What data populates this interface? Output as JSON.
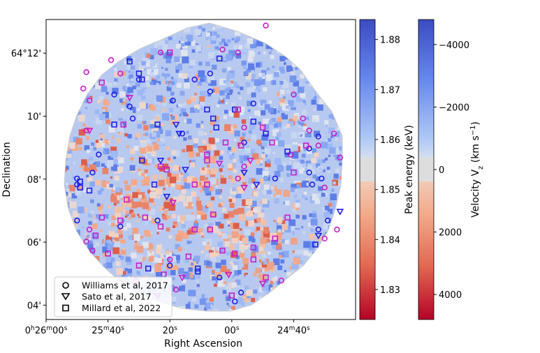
{
  "chart_data": {
    "type": "scatter",
    "title": "",
    "xlabel": "Right Ascension",
    "ylabel": "Declination",
    "x_ticks": [
      {
        "h": "0",
        "m": "26",
        "s": "00",
        "pos": 0.0
      },
      {
        "h": "",
        "m": "25",
        "s": "40",
        "pos": 0.2
      },
      {
        "h": "",
        "m": "",
        "s": "20",
        "pos": 0.4
      },
      {
        "h": "",
        "m": "",
        "s": "00",
        "pos": 0.6
      },
      {
        "h": "",
        "m": "24",
        "s": "40",
        "pos": 0.8
      }
    ],
    "y_ticks": [
      {
        "label": "64°12'",
        "pos": 0.112
      },
      {
        "label": "10'",
        "pos": 0.322
      },
      {
        "label": "08'",
        "pos": 0.532
      },
      {
        "label": "06'",
        "pos": 0.742
      },
      {
        "label": "04'",
        "pos": 0.952
      }
    ],
    "colorbars": [
      {
        "name": "peak-energy",
        "label": "Peak energy (keV)",
        "range": [
          1.824,
          1.884
        ],
        "ticks": [
          "1.88",
          "1.87",
          "1.86",
          "1.85",
          "1.84",
          "1.83"
        ],
        "tick_values": [
          1.88,
          1.87,
          1.86,
          1.85,
          1.84,
          1.83
        ]
      },
      {
        "name": "velocity",
        "label_main": "Velocity V",
        "label_sub": "z",
        "label_unit": " (km s",
        "label_sup": "−1",
        "label_end": ")",
        "range": [
          -4800,
          4800
        ],
        "ticks": [
          "−4000",
          "−2000",
          "0",
          "2000",
          "4000"
        ],
        "tick_values": [
          -4000,
          -2000,
          0,
          2000,
          4000
        ]
      }
    ],
    "legend": {
      "position": "lower-left",
      "entries": [
        {
          "label": "Williams et al, 2017",
          "marker": "circle"
        },
        {
          "label": "Sato et al, 2017",
          "marker": "triangle-down"
        },
        {
          "label": "Millard et al, 2022",
          "marker": "square"
        }
      ]
    },
    "marker_colors": {
      "blueshifted": "#1f1fe6",
      "redshifted": "#c81ec8"
    },
    "colormap": {
      "blue": "#3a4cc0",
      "white": "#dddddd",
      "red": "#b40426"
    },
    "series": [
      {
        "name": "Williams et al, 2017",
        "marker": "circle",
        "points": [
          {
            "x": 0.71,
            "y": 0.02,
            "c": "red"
          },
          {
            "x": 0.57,
            "y": 0.1,
            "c": "red"
          },
          {
            "x": 0.62,
            "y": 0.11,
            "c": "red"
          },
          {
            "x": 0.37,
            "y": 0.11,
            "c": "red"
          },
          {
            "x": 0.21,
            "y": 0.135,
            "c": "red"
          },
          {
            "x": 0.24,
            "y": 0.18,
            "c": "red"
          },
          {
            "x": 0.13,
            "y": 0.175,
            "c": "red"
          },
          {
            "x": 0.53,
            "y": 0.18,
            "c": "blue"
          },
          {
            "x": 0.12,
            "y": 0.23,
            "c": "red"
          },
          {
            "x": 0.53,
            "y": 0.24,
            "c": "blue"
          },
          {
            "x": 0.48,
            "y": 0.2,
            "c": "blue"
          },
          {
            "x": 0.3,
            "y": 0.2,
            "c": "blue"
          },
          {
            "x": 0.14,
            "y": 0.27,
            "c": "red"
          },
          {
            "x": 0.22,
            "y": 0.25,
            "c": "blue"
          },
          {
            "x": 0.27,
            "y": 0.29,
            "c": "blue"
          },
          {
            "x": 0.41,
            "y": 0.27,
            "c": "blue"
          },
          {
            "x": 0.67,
            "y": 0.28,
            "c": "blue"
          },
          {
            "x": 0.8,
            "y": 0.25,
            "c": "red"
          },
          {
            "x": 0.28,
            "y": 0.33,
            "c": "blue"
          },
          {
            "x": 0.85,
            "y": 0.43,
            "c": "blue"
          },
          {
            "x": 0.64,
            "y": 0.41,
            "c": "blue"
          },
          {
            "x": 0.83,
            "y": 0.33,
            "c": "red"
          },
          {
            "x": 0.13,
            "y": 0.37,
            "c": "red"
          },
          {
            "x": 0.85,
            "y": 0.37,
            "c": "red"
          },
          {
            "x": 0.64,
            "y": 0.36,
            "c": "red"
          },
          {
            "x": 0.44,
            "y": 0.38,
            "c": "blue"
          },
          {
            "x": 0.88,
            "y": 0.39,
            "c": "blue"
          },
          {
            "x": 0.79,
            "y": 0.45,
            "c": "red"
          },
          {
            "x": 0.17,
            "y": 0.45,
            "c": "blue"
          },
          {
            "x": 0.88,
            "y": 0.42,
            "c": "red"
          },
          {
            "x": 0.93,
            "y": 0.38,
            "c": "red"
          },
          {
            "x": 0.95,
            "y": 0.46,
            "c": "red"
          },
          {
            "x": 0.64,
            "y": 0.49,
            "c": "red"
          },
          {
            "x": 0.86,
            "y": 0.55,
            "c": "blue"
          },
          {
            "x": 0.15,
            "y": 0.51,
            "c": "blue"
          },
          {
            "x": 0.1,
            "y": 0.53,
            "c": "blue"
          },
          {
            "x": 0.1,
            "y": 0.55,
            "c": "blue"
          },
          {
            "x": 0.89,
            "y": 0.53,
            "c": "blue"
          },
          {
            "x": 0.9,
            "y": 0.56,
            "c": "red"
          },
          {
            "x": 0.85,
            "y": 0.51,
            "c": "blue"
          },
          {
            "x": 0.74,
            "y": 0.53,
            "c": "blue"
          },
          {
            "x": 0.62,
            "y": 0.53,
            "c": "red"
          },
          {
            "x": 0.36,
            "y": 0.67,
            "c": "blue"
          },
          {
            "x": 0.24,
            "y": 0.69,
            "c": "blue"
          },
          {
            "x": 0.1,
            "y": 0.67,
            "c": "blue"
          },
          {
            "x": 0.14,
            "y": 0.7,
            "c": "red"
          },
          {
            "x": 0.88,
            "y": 0.7,
            "c": "blue"
          },
          {
            "x": 0.94,
            "y": 0.7,
            "c": "red"
          },
          {
            "x": 0.9,
            "y": 0.73,
            "c": "red"
          },
          {
            "x": 0.91,
            "y": 0.67,
            "c": "blue"
          },
          {
            "x": 0.13,
            "y": 0.74,
            "c": "red"
          },
          {
            "x": 0.15,
            "y": 0.77,
            "c": "red"
          },
          {
            "x": 0.4,
            "y": 0.8,
            "c": "red"
          },
          {
            "x": 0.4,
            "y": 0.82,
            "c": "blue"
          },
          {
            "x": 0.56,
            "y": 0.86,
            "c": "blue"
          },
          {
            "x": 0.61,
            "y": 0.94,
            "c": "blue"
          },
          {
            "x": 0.63,
            "y": 0.91,
            "c": "blue"
          },
          {
            "x": 0.42,
            "y": 0.9,
            "c": "red"
          },
          {
            "x": 0.29,
            "y": 0.87,
            "c": "red"
          },
          {
            "x": 0.76,
            "y": 0.87,
            "c": "red"
          }
        ]
      },
      {
        "name": "Sato et al, 2017",
        "marker": "triangle-down",
        "points": [
          {
            "x": 0.42,
            "y": 0.35,
            "c": "blue"
          },
          {
            "x": 0.43,
            "y": 0.38,
            "c": "blue"
          },
          {
            "x": 0.27,
            "y": 0.26,
            "c": "red"
          },
          {
            "x": 0.14,
            "y": 0.37,
            "c": "red"
          },
          {
            "x": 0.66,
            "y": 0.47,
            "c": "red"
          },
          {
            "x": 0.64,
            "y": 0.51,
            "c": "blue"
          },
          {
            "x": 0.45,
            "y": 0.5,
            "c": "blue"
          },
          {
            "x": 0.37,
            "y": 0.47,
            "c": "blue"
          },
          {
            "x": 0.39,
            "y": 0.59,
            "c": "blue"
          },
          {
            "x": 0.41,
            "y": 0.61,
            "c": "red"
          },
          {
            "x": 0.56,
            "y": 0.48,
            "c": "red"
          },
          {
            "x": 0.68,
            "y": 0.55,
            "c": "blue"
          },
          {
            "x": 0.64,
            "y": 0.56,
            "c": "red"
          },
          {
            "x": 0.95,
            "y": 0.64,
            "c": "blue"
          },
          {
            "x": 0.88,
            "y": 0.72,
            "c": "blue"
          },
          {
            "x": 0.44,
            "y": 0.86,
            "c": "red"
          },
          {
            "x": 0.59,
            "y": 0.85,
            "c": "red"
          },
          {
            "x": 0.7,
            "y": 0.88,
            "c": "red"
          },
          {
            "x": 0.36,
            "y": 0.92,
            "c": "red"
          }
        ]
      },
      {
        "name": "Millard et al, 2022",
        "marker": "square",
        "points": [
          {
            "x": 0.56,
            "y": 0.13,
            "c": "blue"
          },
          {
            "x": 0.4,
            "y": 0.11,
            "c": "red"
          },
          {
            "x": 0.27,
            "y": 0.14,
            "c": "blue"
          },
          {
            "x": 0.3,
            "y": 0.18,
            "c": "blue"
          },
          {
            "x": 0.31,
            "y": 0.2,
            "c": "blue"
          },
          {
            "x": 0.18,
            "y": 0.21,
            "c": "red"
          },
          {
            "x": 0.52,
            "y": 0.3,
            "c": "blue"
          },
          {
            "x": 0.61,
            "y": 0.3,
            "c": "blue"
          },
          {
            "x": 0.54,
            "y": 0.33,
            "c": "blue"
          },
          {
            "x": 0.62,
            "y": 0.3,
            "c": "red"
          },
          {
            "x": 0.67,
            "y": 0.34,
            "c": "blue"
          },
          {
            "x": 0.22,
            "y": 0.35,
            "c": "blue"
          },
          {
            "x": 0.25,
            "y": 0.35,
            "c": "red"
          },
          {
            "x": 0.36,
            "y": 0.35,
            "c": "blue"
          },
          {
            "x": 0.55,
            "y": 0.36,
            "c": "blue"
          },
          {
            "x": 0.7,
            "y": 0.36,
            "c": "red"
          },
          {
            "x": 0.71,
            "y": 0.38,
            "c": "blue"
          },
          {
            "x": 0.58,
            "y": 0.41,
            "c": "red"
          },
          {
            "x": 0.63,
            "y": 0.42,
            "c": "red"
          },
          {
            "x": 0.73,
            "y": 0.41,
            "c": "red"
          },
          {
            "x": 0.84,
            "y": 0.42,
            "c": "red"
          },
          {
            "x": 0.52,
            "y": 0.45,
            "c": "red"
          },
          {
            "x": 0.52,
            "y": 0.47,
            "c": "red"
          },
          {
            "x": 0.78,
            "y": 0.44,
            "c": "blue"
          },
          {
            "x": 0.31,
            "y": 0.47,
            "c": "blue"
          },
          {
            "x": 0.37,
            "y": 0.49,
            "c": "red"
          },
          {
            "x": 0.39,
            "y": 0.5,
            "c": "red"
          },
          {
            "x": 0.48,
            "y": 0.55,
            "c": "red"
          },
          {
            "x": 0.52,
            "y": 0.55,
            "c": "red"
          },
          {
            "x": 0.8,
            "y": 0.51,
            "c": "red"
          },
          {
            "x": 0.35,
            "y": 0.55,
            "c": "blue"
          },
          {
            "x": 0.11,
            "y": 0.56,
            "c": "blue"
          },
          {
            "x": 0.14,
            "y": 0.57,
            "c": "blue"
          },
          {
            "x": 0.26,
            "y": 0.6,
            "c": "red"
          },
          {
            "x": 0.18,
            "y": 0.66,
            "c": "red"
          },
          {
            "x": 0.32,
            "y": 0.66,
            "c": "red"
          },
          {
            "x": 0.24,
            "y": 0.67,
            "c": "red"
          },
          {
            "x": 0.54,
            "y": 0.65,
            "c": "red"
          },
          {
            "x": 0.78,
            "y": 0.66,
            "c": "red"
          },
          {
            "x": 0.37,
            "y": 0.69,
            "c": "red"
          },
          {
            "x": 0.48,
            "y": 0.7,
            "c": "red"
          },
          {
            "x": 0.53,
            "y": 0.7,
            "c": "red"
          },
          {
            "x": 0.16,
            "y": 0.72,
            "c": "red"
          },
          {
            "x": 0.74,
            "y": 0.73,
            "c": "red"
          },
          {
            "x": 0.87,
            "y": 0.75,
            "c": "blue"
          },
          {
            "x": 0.67,
            "y": 0.76,
            "c": "red"
          },
          {
            "x": 0.57,
            "y": 0.77,
            "c": "red"
          },
          {
            "x": 0.61,
            "y": 0.78,
            "c": "red"
          },
          {
            "x": 0.46,
            "y": 0.79,
            "c": "red"
          },
          {
            "x": 0.3,
            "y": 0.82,
            "c": "red"
          },
          {
            "x": 0.33,
            "y": 0.83,
            "c": "blue"
          },
          {
            "x": 0.49,
            "y": 0.83,
            "c": "blue"
          },
          {
            "x": 0.49,
            "y": 0.84,
            "c": "blue"
          },
          {
            "x": 0.67,
            "y": 0.8,
            "c": "red"
          },
          {
            "x": 0.71,
            "y": 0.86,
            "c": "red"
          },
          {
            "x": 0.2,
            "y": 0.78,
            "c": "red"
          },
          {
            "x": 0.38,
            "y": 0.85,
            "c": "red"
          },
          {
            "x": 0.6,
            "y": 0.92,
            "c": "red"
          },
          {
            "x": 0.11,
            "y": 0.54,
            "c": "blue"
          }
        ]
      }
    ]
  }
}
